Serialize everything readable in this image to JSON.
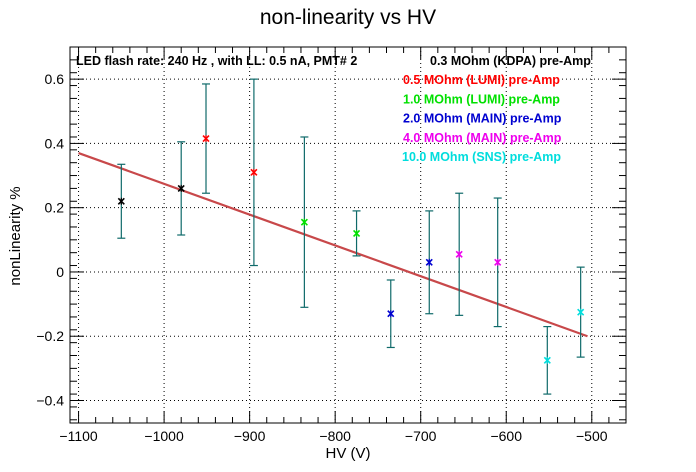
{
  "chart_data": {
    "type": "scatter",
    "title": "non-linearity vs HV",
    "xlabel": "HV (V)",
    "ylabel": "nonLinearity %",
    "xlim": [
      -1110,
      -460
    ],
    "ylim": [
      -0.47,
      0.7
    ],
    "x_ticks": [
      -1100,
      -1000,
      -900,
      -800,
      -700,
      -600,
      -500
    ],
    "y_ticks": [
      -0.4,
      -0.2,
      0,
      0.2,
      0.4,
      0.6
    ],
    "x_tick_labels": [
      "−1100",
      "−1000",
      "−900",
      "−800",
      "−700",
      "−600",
      "−500"
    ],
    "y_tick_labels": [
      "−0.4",
      "−0.2",
      "0",
      "0.2",
      "0.4",
      "0.6"
    ],
    "grid": true,
    "annotation": "LED flash rate: 240 Hz , with LL: 0.5 nA, PMT# 2",
    "legend_position": "top-right",
    "error_bar_color": "#0f6a6a",
    "fit_line": {
      "color": "#c8484a",
      "x": [
        -1100,
        -505
      ],
      "y": [
        0.37,
        -0.2
      ]
    },
    "series": [
      {
        "name": "0.3 MOhm (KDPA) pre-Amp",
        "color": "#000000",
        "points": [
          {
            "x": -1050,
            "y": 0.22,
            "err": 0.115
          },
          {
            "x": -980,
            "y": 0.26,
            "err": 0.145
          }
        ]
      },
      {
        "name": "0.5 MOhm (LUMI) pre-Amp",
        "color": "#ff0000",
        "points": [
          {
            "x": -951,
            "y": 0.415,
            "err": 0.17
          },
          {
            "x": -895,
            "y": 0.31,
            "err": 0.29
          }
        ]
      },
      {
        "name": "1.0 MOhm (LUMI) pre-Amp",
        "color": "#00e000",
        "points": [
          {
            "x": -836,
            "y": 0.155,
            "err": 0.265
          },
          {
            "x": -775,
            "y": 0.12,
            "err": 0.07
          }
        ]
      },
      {
        "name": "2.0 MOhm (MAIN) pre-Amp",
        "color": "#0000d0",
        "points": [
          {
            "x": -735,
            "y": -0.13,
            "err": 0.105
          },
          {
            "x": -690,
            "y": 0.03,
            "err": 0.16
          }
        ]
      },
      {
        "name": "4.0 MOhm (MAIN) pre-Amp",
        "color": "#ee00ee",
        "points": [
          {
            "x": -655,
            "y": 0.055,
            "err": 0.19
          },
          {
            "x": -610,
            "y": 0.03,
            "err": 0.2
          }
        ]
      },
      {
        "name": "10.0 MOhm (SNS) pre-Amp",
        "color": "#00dddd",
        "points": [
          {
            "x": -552,
            "y": -0.275,
            "err": 0.105
          },
          {
            "x": -513,
            "y": -0.125,
            "err": 0.14
          }
        ]
      }
    ]
  }
}
